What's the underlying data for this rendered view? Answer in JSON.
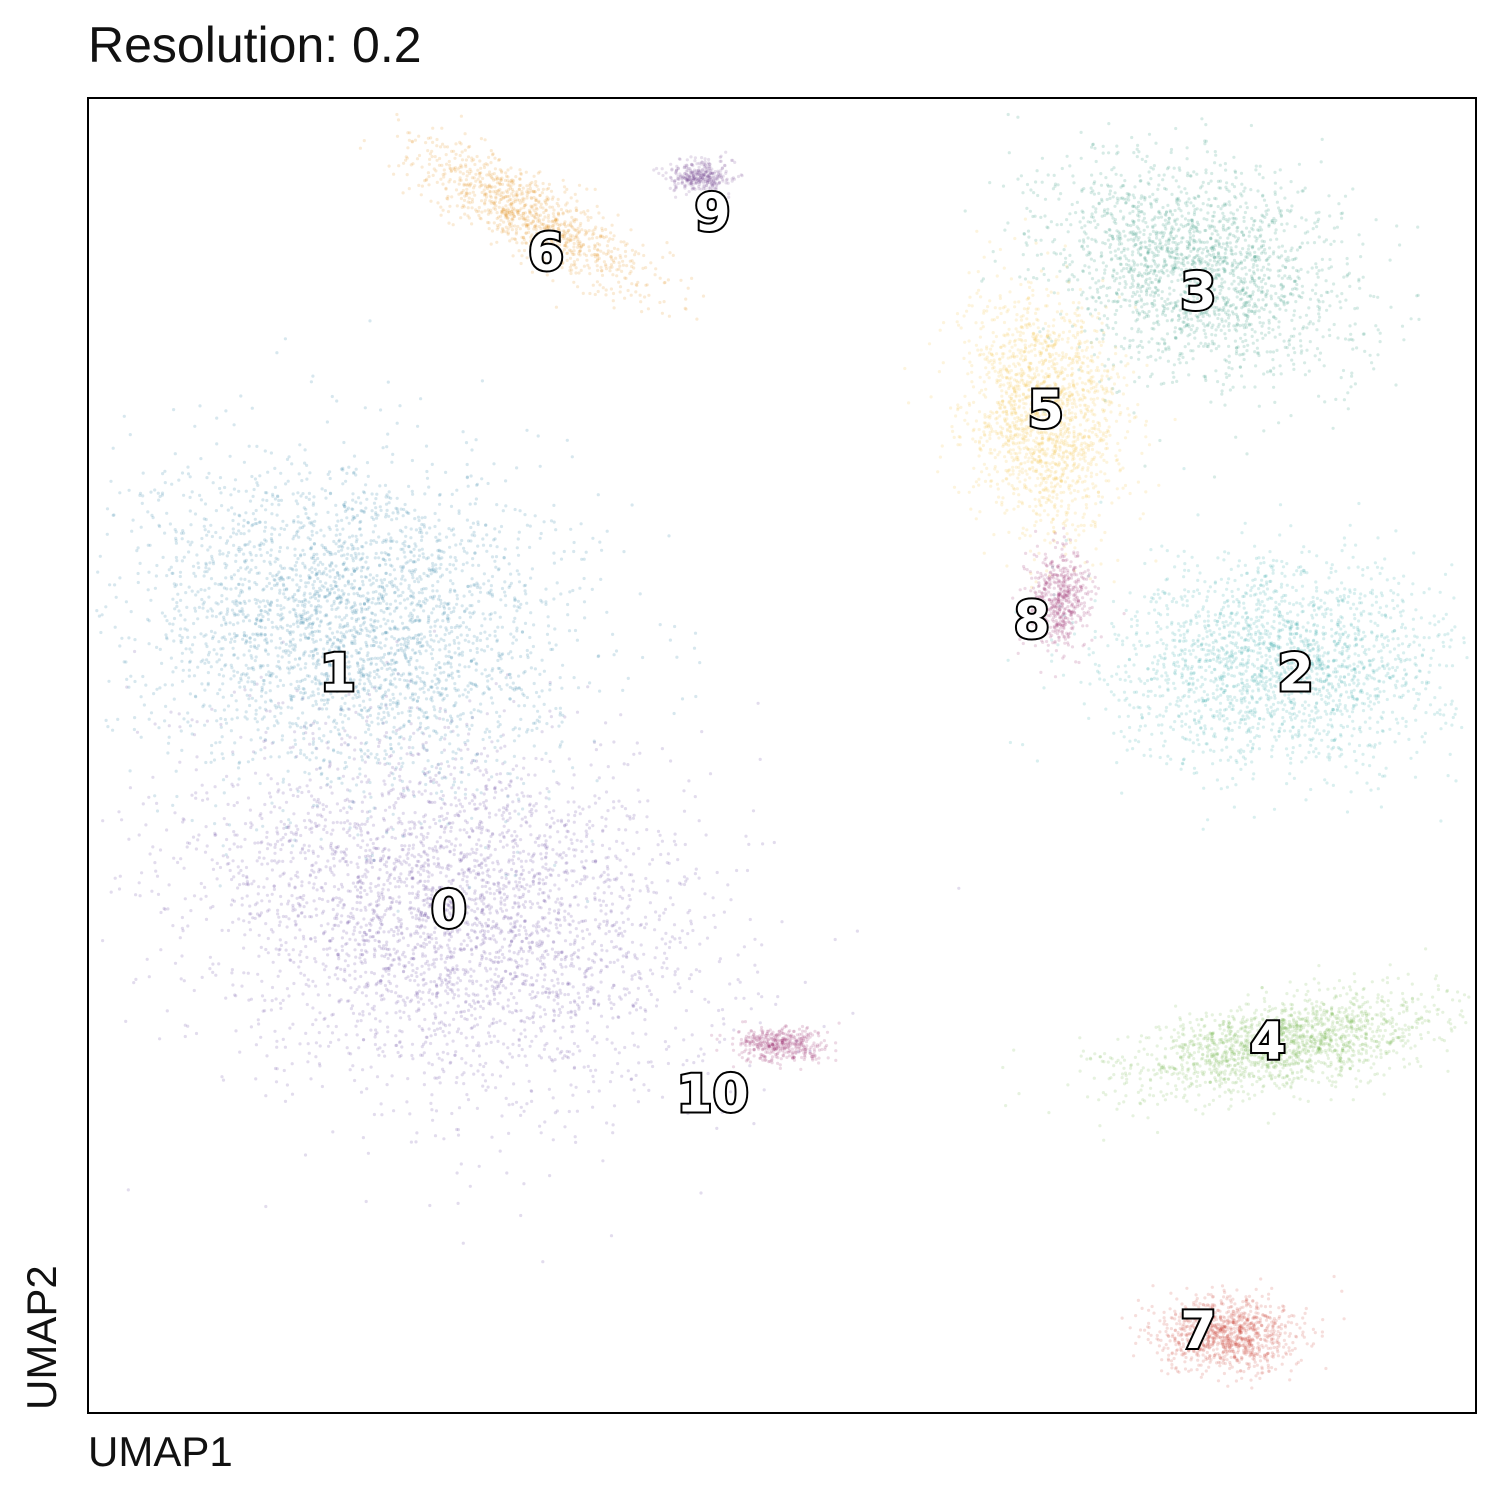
{
  "chart_data": {
    "type": "scatter",
    "title": "Resolution: 0.2",
    "xlabel": "UMAP1",
    "ylabel": "UMAP2",
    "grid": false,
    "legend": "on-data",
    "clusters": [
      {
        "label": "0",
        "color": "#5e3c99",
        "center": [
          0.26,
          0.38
        ],
        "spread": [
          0.17,
          0.12
        ],
        "angle": -0.35,
        "density": 1.0
      },
      {
        "label": "1",
        "color": "#21799e",
        "center": [
          0.19,
          0.6
        ],
        "spread": [
          0.14,
          0.11
        ],
        "angle": -0.2,
        "density": 0.9
      },
      {
        "label": "2",
        "color": "#2aa6a6",
        "center": [
          0.86,
          0.57
        ],
        "spread": [
          0.11,
          0.07
        ],
        "angle": 0.0,
        "density": 0.6
      },
      {
        "label": "3",
        "color": "#1f8f73",
        "center": [
          0.8,
          0.87
        ],
        "spread": [
          0.1,
          0.07
        ],
        "angle": -0.4,
        "density": 0.6
      },
      {
        "label": "4",
        "color": "#74b84e",
        "center": [
          0.86,
          0.28
        ],
        "spread": [
          0.1,
          0.03
        ],
        "angle": 0.2,
        "density": 0.5
      },
      {
        "label": "5",
        "color": "#f2c040",
        "center": [
          0.69,
          0.76
        ],
        "spread": [
          0.05,
          0.08
        ],
        "angle": 0.1,
        "density": 0.5
      },
      {
        "label": "6",
        "color": "#e6901a",
        "center": [
          0.32,
          0.91
        ],
        "spread": [
          0.09,
          0.025
        ],
        "angle": -0.55,
        "density": 0.3
      },
      {
        "label": "7",
        "color": "#cc4a3c",
        "center": [
          0.82,
          0.06
        ],
        "spread": [
          0.045,
          0.025
        ],
        "angle": 0.0,
        "density": 0.3
      },
      {
        "label": "8",
        "color": "#9c2b6e",
        "center": [
          0.7,
          0.62
        ],
        "spread": [
          0.02,
          0.035
        ],
        "angle": 0.0,
        "density": 0.15
      },
      {
        "label": "9",
        "color": "#7b4c96",
        "center": [
          0.44,
          0.94
        ],
        "spread": [
          0.02,
          0.012
        ],
        "angle": 0.0,
        "density": 0.1
      },
      {
        "label": "10",
        "color": "#9c2b6e",
        "center": [
          0.5,
          0.28
        ],
        "spread": [
          0.03,
          0.012
        ],
        "angle": 0.0,
        "density": 0.12
      }
    ],
    "label_positions": [
      {
        "label": "0",
        "pos": [
          0.26,
          0.38
        ]
      },
      {
        "label": "1",
        "pos": [
          0.18,
          0.56
        ]
      },
      {
        "label": "2",
        "pos": [
          0.87,
          0.56
        ]
      },
      {
        "label": "3",
        "pos": [
          0.8,
          0.85
        ]
      },
      {
        "label": "4",
        "pos": [
          0.85,
          0.28
        ]
      },
      {
        "label": "5",
        "pos": [
          0.69,
          0.76
        ]
      },
      {
        "label": "6",
        "pos": [
          0.33,
          0.88
        ]
      },
      {
        "label": "7",
        "pos": [
          0.8,
          0.06
        ]
      },
      {
        "label": "8",
        "pos": [
          0.68,
          0.6
        ]
      },
      {
        "label": "9",
        "pos": [
          0.45,
          0.91
        ]
      },
      {
        "label": "10",
        "pos": [
          0.45,
          0.24
        ]
      }
    ],
    "xlim": [
      0,
      1
    ],
    "ylim": [
      0,
      1
    ]
  }
}
